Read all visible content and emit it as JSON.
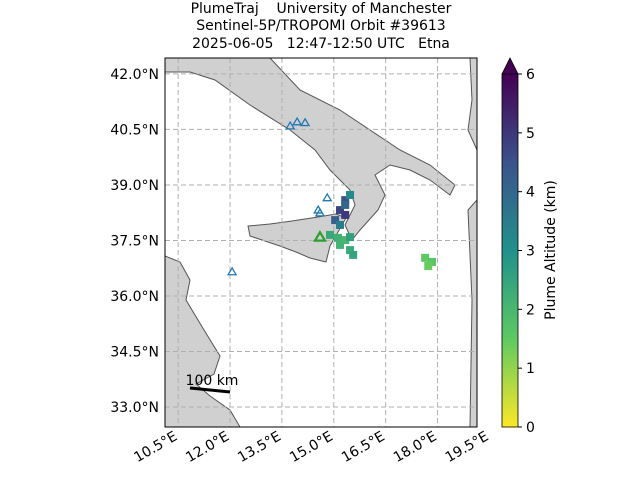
{
  "chart_data": {
    "type": "map",
    "title": [
      "PlumeTraj    University of Manchester",
      "Sentinel-5P/TROPOMI Orbit #39613",
      "2025-06-05   12:47-12:50 UTC   Etna"
    ],
    "xlim": [
      10.12,
      19.14
    ],
    "ylim": [
      32.46,
      42.43
    ],
    "xticks": [
      {
        "value": 10.5,
        "label": "10.5°E"
      },
      {
        "value": 12.0,
        "label": "12.0°E"
      },
      {
        "value": 13.5,
        "label": "13.5°E"
      },
      {
        "value": 15.0,
        "label": "15.0°E"
      },
      {
        "value": 16.5,
        "label": "16.5°E"
      },
      {
        "value": 18.0,
        "label": "18.0°E"
      },
      {
        "value": 19.5,
        "label": "19.5°E"
      }
    ],
    "yticks": [
      {
        "value": 42.0,
        "label": "42.0°N"
      },
      {
        "value": 40.5,
        "label": "40.5°N"
      },
      {
        "value": 39.0,
        "label": "39.0°N"
      },
      {
        "value": 37.5,
        "label": "37.5°N"
      },
      {
        "value": 36.0,
        "label": "36.0°N"
      },
      {
        "value": 34.5,
        "label": "34.5°N"
      },
      {
        "value": 33.0,
        "label": "33.0°N"
      }
    ],
    "grid": true,
    "colorbar": {
      "label": "Plume Altitude (km)",
      "lim": [
        0,
        6
      ],
      "ticks": [
        0,
        1,
        2,
        3,
        4,
        5,
        6
      ],
      "colormap": [
        "#fde725",
        "#5ec962",
        "#21918c",
        "#3b528b",
        "#440154"
      ]
    },
    "scale_bar_label": "100 km",
    "pixels": {
      "lon": [
        15.33,
        15.18,
        15.33,
        15.04,
        15.18,
        15.33,
        15.47,
        14.89,
        15.12,
        15.33,
        15.47,
        15.18,
        15.47,
        15.56,
        17.64,
        17.84,
        17.73
      ],
      "lat": [
        38.59,
        38.32,
        38.19,
        38.05,
        37.92,
        38.46,
        38.73,
        37.65,
        37.57,
        37.51,
        37.59,
        37.38,
        37.24,
        37.11,
        37.03,
        36.92,
        36.81
      ],
      "altitude": [
        4.5,
        4.8,
        5.0,
        4.2,
        3.5,
        4.0,
        3.2,
        2.4,
        2.2,
        2.0,
        2.6,
        2.1,
        2.3,
        2.5,
        1.5,
        1.6,
        1.4
      ]
    },
    "volcanoes": {
      "color": "#1f77b4",
      "lon": [
        13.74,
        13.94,
        14.17,
        14.55,
        14.6,
        14.81,
        12.06
      ],
      "lat": [
        40.59,
        40.7,
        40.68,
        38.32,
        38.24,
        38.65,
        36.65
      ]
    },
    "target": {
      "color": "#2ca02c",
      "lon": 14.6,
      "lat": 37.59
    }
  }
}
